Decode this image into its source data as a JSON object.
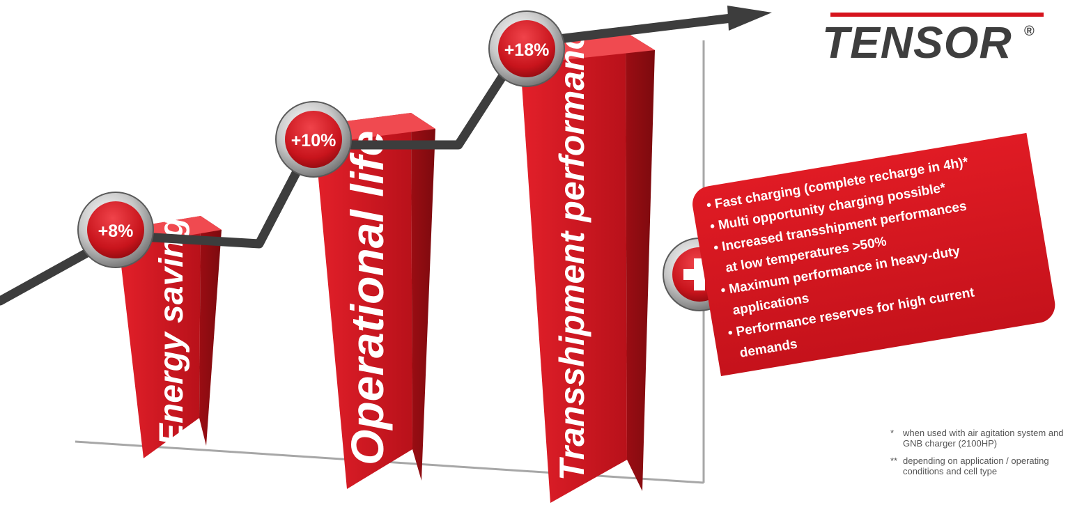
{
  "logo": {
    "text": "TENSOR",
    "registered": "®"
  },
  "bars": [
    {
      "label": "Energy savings",
      "badge": "+8%"
    },
    {
      "label": "Operational life",
      "badge": "+10%"
    },
    {
      "label": "Transshipment performance",
      "badge": "+18%"
    }
  ],
  "plus_badge_icon": "plus-icon",
  "benefits": [
    "• Fast charging (complete recharge in 4h)*",
    "• Multi opportunity charging possible*",
    "• Increased transshipment performances",
    "at low temperatures >50%",
    "• Maximum performance in heavy-duty",
    "applications",
    "• Performance reserves for high current",
    "demands"
  ],
  "footnotes": [
    {
      "mark": "*",
      "text": "when used with air agitation system and GNB charger (2100HP)"
    },
    {
      "mark": "**",
      "text": "depending on application / operating conditions and cell type"
    }
  ],
  "colors": {
    "brand_red": "#d6141d",
    "dark_red": "#8e0b10",
    "gray_line": "#3d3d3d",
    "axis_gray": "#a7a7a7"
  }
}
